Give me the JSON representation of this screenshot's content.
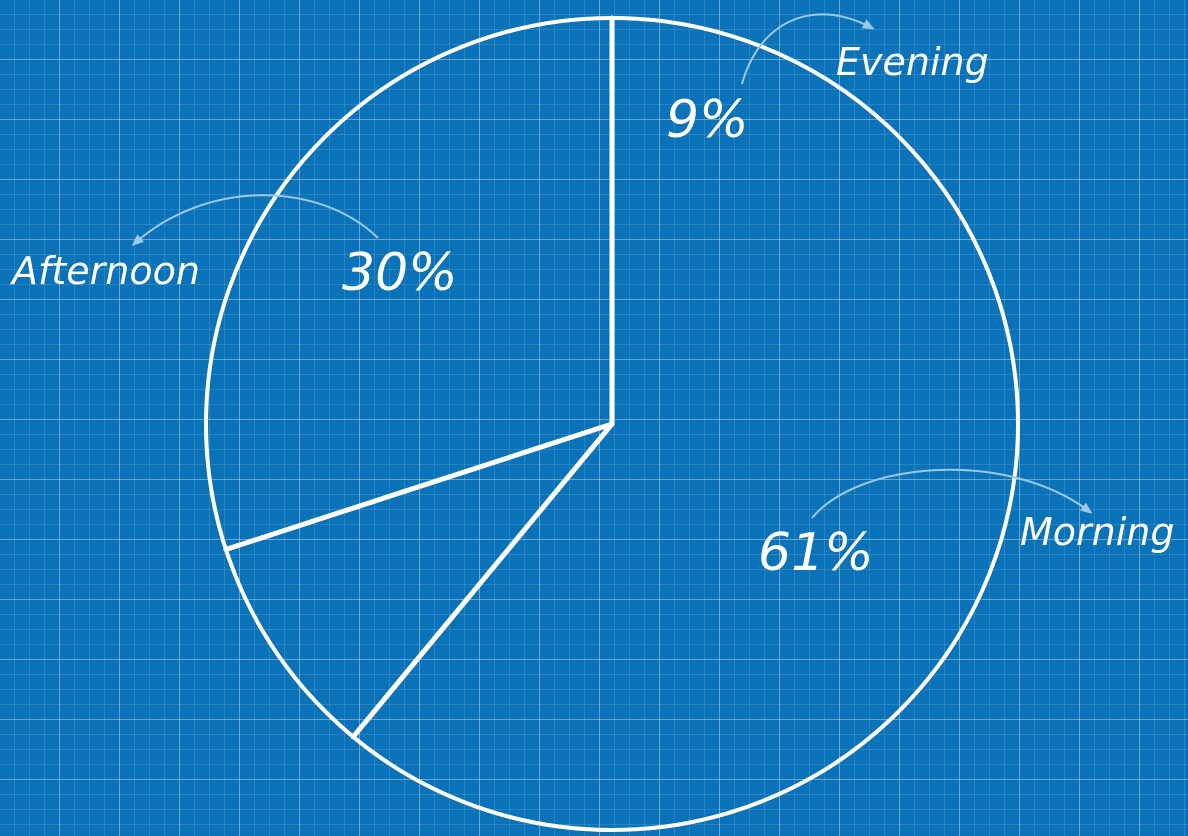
{
  "chart_data": {
    "type": "pie",
    "categories": [
      "Morning",
      "Evening",
      "Afternoon"
    ],
    "values": [
      61,
      9,
      30
    ],
    "value_labels": [
      "61%",
      "9%",
      "30%"
    ],
    "title": "",
    "legend": "none"
  },
  "colors": {
    "background": "#0a72b8",
    "grid": "#ffffff",
    "stroke": "#ffffff",
    "arrow": "#9cc8ea"
  }
}
